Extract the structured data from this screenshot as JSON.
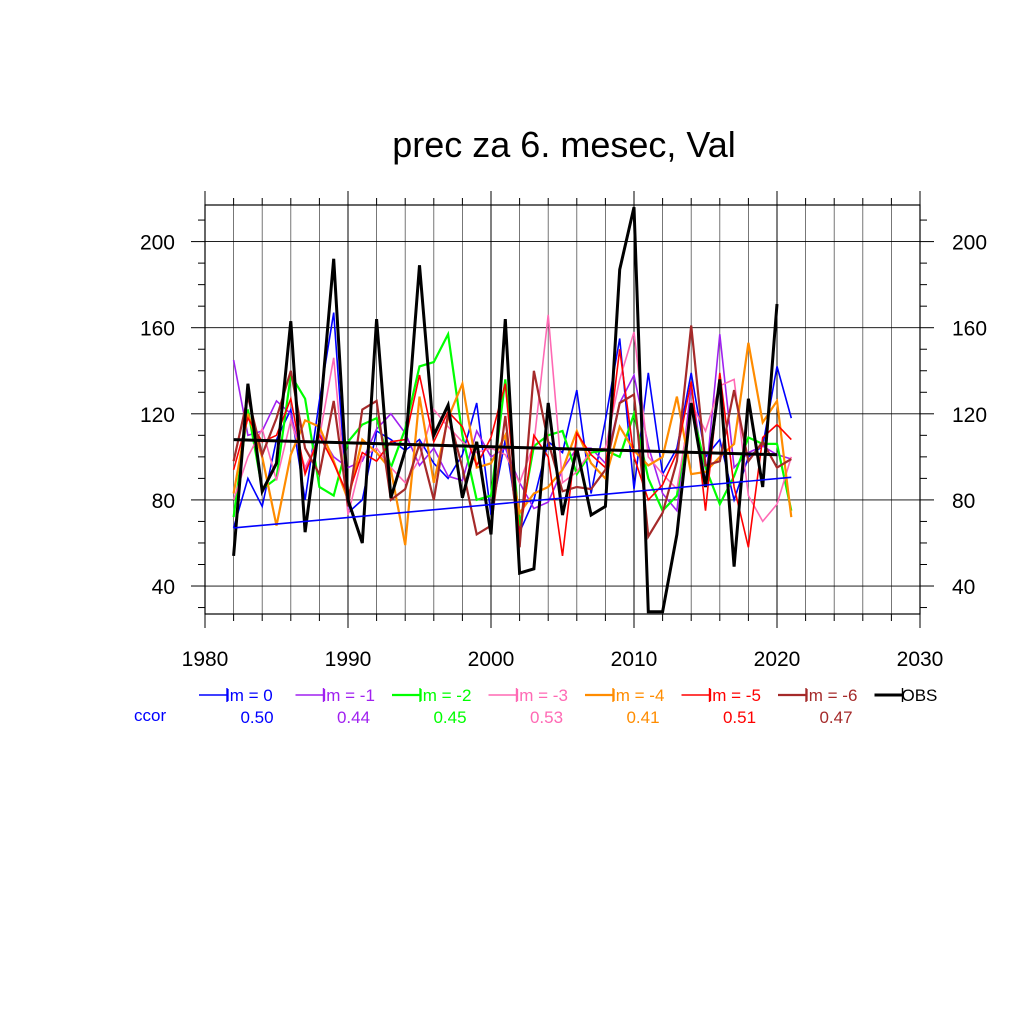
{
  "chart_data": {
    "type": "line",
    "title": "prec za 6. mesec, Val",
    "xlabel": "",
    "ylabel": "",
    "xlim": [
      1980,
      2030
    ],
    "ylim": [
      27,
      217
    ],
    "x_ticks": [
      1980,
      1990,
      2000,
      2010,
      2020,
      2030
    ],
    "y_ticks": [
      40,
      80,
      120,
      160,
      200
    ],
    "grid": true,
    "legend_position": "bottom",
    "x": [
      1982,
      1983,
      1984,
      1985,
      1986,
      1987,
      1988,
      1989,
      1990,
      1991,
      1992,
      1993,
      1994,
      1995,
      1996,
      1997,
      1998,
      1999,
      2000,
      2001,
      2002,
      2003,
      2004,
      2005,
      2006,
      2007,
      2008,
      2009,
      2010,
      2011,
      2012,
      2013,
      2014,
      2015,
      2016,
      2017,
      2018,
      2019,
      2020,
      2021
    ],
    "series": [
      {
        "name": "lm = 0",
        "color": "#0000ff",
        "ccor": "0.50",
        "width": 1.6,
        "values": [
          67,
          90,
          77,
          108,
          122,
          80,
          126,
          167,
          74,
          80,
          112,
          108,
          103,
          108,
          97,
          90,
          101,
          125,
          73,
          108,
          65,
          80,
          107,
          102,
          131,
          83,
          117,
          155,
          85,
          139,
          92,
          104,
          139,
          100,
          108,
          80,
          100,
          105,
          142,
          118
        ]
      },
      {
        "name": "lm = -1",
        "color": "#a020f0",
        "ccor": "0.44",
        "width": 1.6,
        "values": [
          145,
          110,
          112,
          126,
          120,
          93,
          111,
          100,
          95,
          98,
          113,
          120,
          111,
          96,
          104,
          91,
          89,
          112,
          100,
          104,
          88,
          76,
          79,
          94,
          104,
          104,
          97,
          125,
          138,
          105,
          83,
          75,
          133,
          88,
          157,
          95,
          102,
          105,
          101,
          99
        ]
      },
      {
        "name": "lm = -2",
        "color": "#00ff00",
        "ccor": "0.45",
        "width": 2.2,
        "values": [
          72,
          122,
          85,
          90,
          138,
          127,
          86,
          82,
          107,
          115,
          118,
          95,
          113,
          142,
          144,
          157,
          110,
          80,
          82,
          136,
          68,
          105,
          110,
          112,
          92,
          102,
          103,
          100,
          120,
          90,
          75,
          82,
          124,
          95,
          78,
          91,
          109,
          106,
          106,
          75
        ]
      },
      {
        "name": "lm = -3",
        "color": "#ff69b4",
        "ccor": "0.53",
        "width": 1.6,
        "values": [
          80,
          100,
          113,
          89,
          117,
          95,
          109,
          146,
          73,
          100,
          104,
          95,
          88,
          99,
          122,
          114,
          107,
          102,
          104,
          101,
          88,
          106,
          166,
          88,
          93,
          103,
          104,
          136,
          158,
          100,
          92,
          85,
          125,
          112,
          133,
          136,
          82,
          70,
          78,
          100
        ]
      },
      {
        "name": "lm = -4",
        "color": "#ff8c00",
        "ccor": "0.41",
        "width": 2.2,
        "values": [
          83,
          120,
          100,
          68,
          101,
          117,
          114,
          98,
          80,
          108,
          102,
          94,
          59,
          128,
          88,
          118,
          134,
          95,
          97,
          110,
          74,
          83,
          86,
          94,
          112,
          97,
          90,
          114,
          103,
          96,
          100,
          128,
          92,
          93,
          100,
          106,
          153,
          116,
          126,
          72
        ]
      },
      {
        "name": "lm = -5",
        "color": "#ff0000",
        "ccor": "0.51",
        "width": 1.6,
        "values": [
          94,
          118,
          107,
          110,
          127,
          92,
          110,
          97,
          82,
          102,
          98,
          107,
          108,
          138,
          107,
          121,
          114,
          96,
          109,
          134,
          63,
          110,
          100,
          54,
          111,
          101,
          95,
          150,
          100,
          80,
          87,
          102,
          135,
          75,
          139,
          86,
          58,
          109,
          115,
          108
        ]
      },
      {
        "name": "lm = -6",
        "color": "#a52a2a",
        "ccor": "0.47",
        "width": 2.2,
        "values": [
          98,
          128,
          101,
          118,
          140,
          104,
          92,
          126,
          77,
          122,
          126,
          80,
          85,
          106,
          80,
          120,
          95,
          64,
          68,
          119,
          58,
          140,
          107,
          84,
          86,
          85,
          94,
          125,
          129,
          63,
          74,
          98,
          161,
          96,
          98,
          131,
          98,
          107,
          95,
          99
        ]
      },
      {
        "name": "OBS",
        "color": "#000000",
        "ccor": "",
        "width": 3.0,
        "values": [
          54,
          134,
          84,
          97,
          163,
          65,
          116,
          192,
          80,
          60,
          164,
          81,
          103,
          189,
          110,
          124,
          81,
          107,
          64,
          164,
          46,
          48,
          125,
          73,
          104,
          73,
          77,
          187,
          216,
          28,
          28,
          64,
          125,
          86,
          136,
          49,
          127,
          86,
          171,
          null
        ]
      }
    ],
    "trendlines": [
      {
        "series": "lm = 0",
        "color": "#0000ff",
        "width": 1.6,
        "x": [
          1982,
          2021
        ],
        "y": [
          67,
          90.5
        ]
      },
      {
        "series": "OBS",
        "color": "#000000",
        "width": 3.0,
        "x": [
          1982,
          2020
        ],
        "y": [
          108,
          101
        ]
      }
    ],
    "ccor_label": "ccor",
    "ccor_label_color": "#0000ff"
  }
}
